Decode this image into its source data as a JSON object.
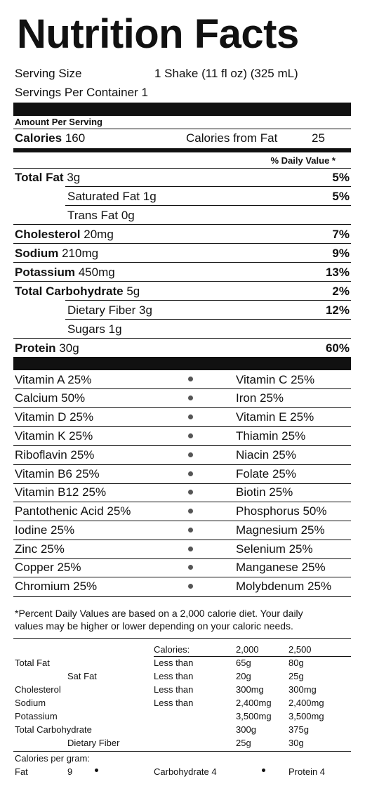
{
  "title": "Nutrition Facts",
  "serving": {
    "size_label": "Serving Size",
    "size_value": "1 Shake (11 fl oz) (325 mL)",
    "per_container": "Servings Per Container 1"
  },
  "amount_per_serving": "Amount Per Serving",
  "calories": {
    "label": "Calories",
    "value": "160",
    "from_fat_label": "Calories from Fat",
    "from_fat_value": "25"
  },
  "dv_header": "% Daily Value *",
  "nutrients": [
    {
      "name": "Total Fat",
      "amount": "3g",
      "dv": "5%"
    },
    {
      "name": "Saturated Fat",
      "amount": "1g",
      "dv": "5%"
    },
    {
      "name": "Trans Fat",
      "amount": "0g",
      "dv": ""
    },
    {
      "name": "Cholesterol",
      "amount": "20mg",
      "dv": "7%"
    },
    {
      "name": "Sodium",
      "amount": "210mg",
      "dv": "9%"
    },
    {
      "name": "Potassium",
      "amount": "450mg",
      "dv": "13%"
    },
    {
      "name": "Total Carbohydrate",
      "amount": "5g",
      "dv": "2%"
    },
    {
      "name": "Dietary Fiber",
      "amount": "3g",
      "dv": "12%"
    },
    {
      "name": "Sugars",
      "amount": "1g",
      "dv": ""
    },
    {
      "name": "Protein",
      "amount": "30g",
      "dv": "60%"
    }
  ],
  "vitamins": [
    {
      "left": "Vitamin A 25%",
      "right": "Vitamin C  25%"
    },
    {
      "left": "Calcium 50%",
      "right": "Iron  25%"
    },
    {
      "left": "Vitamin D 25%",
      "right": "Vitamin E 25%"
    },
    {
      "left": "Vitamin K 25%",
      "right": "Thiamin 25%"
    },
    {
      "left": "Riboflavin 25%",
      "right": "Niacin 25%"
    },
    {
      "left": "Vitamin B6 25%",
      "right": "Folate 25%"
    },
    {
      "left": "Vitamin B12 25%",
      "right": "Biotin 25%"
    },
    {
      "left": "Pantothenic Acid 25%",
      "right": "Phosphorus 50%"
    },
    {
      "left": "Iodine 25%",
      "right": "Magnesium 25%"
    },
    {
      "left": "Zinc 25%",
      "right": "Selenium 25%"
    },
    {
      "left": "Copper 25%",
      "right": "Manganese 25%"
    },
    {
      "left": "Chromium 25%",
      "right": "Molybdenum 25%"
    }
  ],
  "footnote": {
    "line1": "*Percent Daily Values are based on a 2,000 calorie diet. Your daily",
    "line2": "values may be higher or lower depending on your caloric needs."
  },
  "reference_table": {
    "header": {
      "calories_label": "Calories:",
      "col1": "2,000",
      "col2": "2,500"
    },
    "rows": [
      {
        "name": "Total Fat",
        "qualifier": "Less than",
        "v1": "65g",
        "v2": "80g"
      },
      {
        "name": "Sat Fat",
        "qualifier": "Less than",
        "v1": "20g",
        "v2": "25g"
      },
      {
        "name": "Cholesterol",
        "qualifier": "Less than",
        "v1": "300mg",
        "v2": "300mg"
      },
      {
        "name": "Sodium",
        "qualifier": "Less than",
        "v1": "2,400mg",
        "v2": "2,400mg"
      },
      {
        "name": "Potassium",
        "qualifier": "",
        "v1": "3,500mg",
        "v2": "3,500mg"
      },
      {
        "name": "Total Carbohydrate",
        "qualifier": "",
        "v1": "300g",
        "v2": "375g"
      },
      {
        "name": "Dietary Fiber",
        "qualifier": "",
        "v1": "25g",
        "v2": "30g"
      }
    ]
  },
  "calories_per_gram": {
    "label": "Calories per gram:",
    "fat_label": "Fat",
    "fat_value": "9",
    "carb": "Carbohydrate 4",
    "protein": "Protein 4"
  }
}
